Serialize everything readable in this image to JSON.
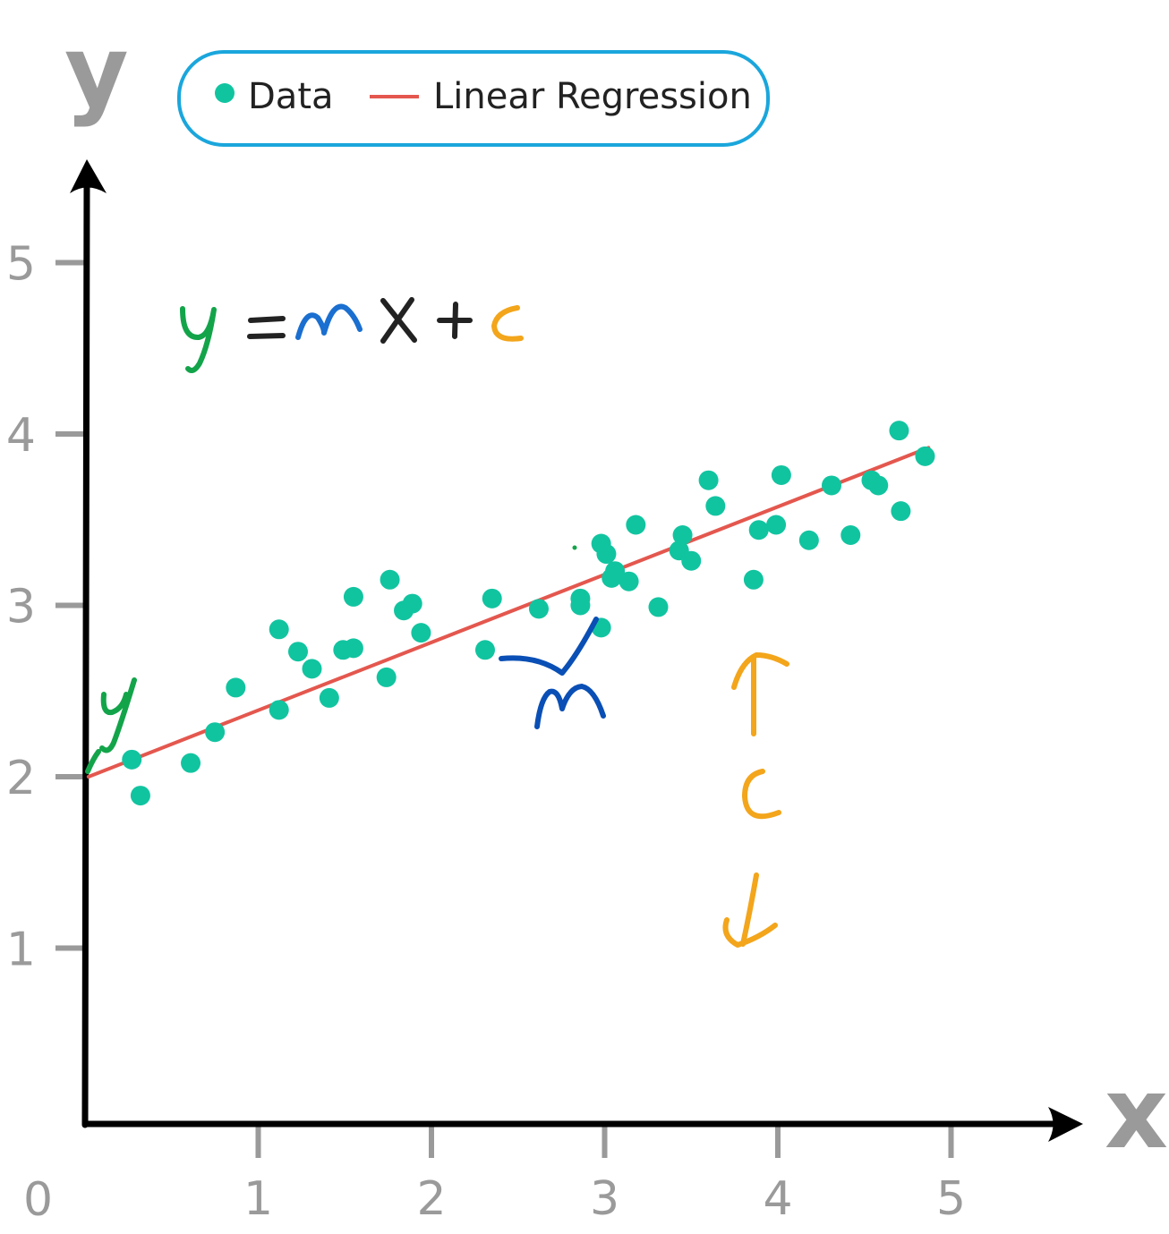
{
  "colors": {
    "point": "#11c4a0",
    "line": "#e4574e",
    "axis": "#000000",
    "tick": "#9a9a9a",
    "legend_border": "#1aa6dc",
    "hand_green": "#13a44a",
    "hand_blue": "#1a6fd0",
    "hand_dark": "#222222",
    "hand_orange": "#f3a51b",
    "hand_navy": "#0a4fb5"
  },
  "chart_data": {
    "type": "scatter",
    "xlabel": "x",
    "ylabel": "y",
    "origin_label": "0",
    "xlim": [
      0,
      5.7
    ],
    "ylim": [
      0,
      5.5
    ],
    "xticks": [
      1,
      2,
      3,
      4,
      5
    ],
    "yticks": [
      1,
      2,
      3,
      4,
      5
    ],
    "grid": false,
    "legend": {
      "position": "top",
      "entries": [
        "Data",
        "Linear Regression"
      ]
    },
    "annotations": [
      "y",
      "=",
      "m",
      "x",
      "+",
      "c",
      "y",
      "m",
      "c"
    ],
    "series": [
      {
        "name": "Data",
        "type": "scatter",
        "points": [
          [
            0.27,
            2.1
          ],
          [
            0.32,
            1.89
          ],
          [
            0.61,
            2.08
          ],
          [
            0.75,
            2.26
          ],
          [
            0.87,
            2.52
          ],
          [
            1.12,
            2.39
          ],
          [
            1.12,
            2.86
          ],
          [
            1.23,
            2.73
          ],
          [
            1.31,
            2.63
          ],
          [
            1.41,
            2.46
          ],
          [
            1.49,
            2.74
          ],
          [
            1.55,
            2.75
          ],
          [
            1.55,
            3.05
          ],
          [
            1.74,
            2.58
          ],
          [
            1.76,
            3.15
          ],
          [
            1.84,
            2.97
          ],
          [
            1.89,
            3.01
          ],
          [
            1.94,
            2.84
          ],
          [
            2.31,
            2.74
          ],
          [
            2.35,
            3.04
          ],
          [
            2.62,
            2.98
          ],
          [
            2.86,
            3.0
          ],
          [
            2.86,
            3.04
          ],
          [
            2.98,
            2.87
          ],
          [
            2.98,
            3.36
          ],
          [
            3.01,
            3.3
          ],
          [
            3.04,
            3.16
          ],
          [
            3.06,
            3.2
          ],
          [
            3.14,
            3.14
          ],
          [
            3.18,
            3.47
          ],
          [
            3.31,
            2.99
          ],
          [
            3.43,
            3.32
          ],
          [
            3.45,
            3.41
          ],
          [
            3.5,
            3.26
          ],
          [
            3.6,
            3.73
          ],
          [
            3.64,
            3.58
          ],
          [
            3.86,
            3.15
          ],
          [
            3.89,
            3.44
          ],
          [
            3.99,
            3.47
          ],
          [
            4.02,
            3.76
          ],
          [
            4.18,
            3.38
          ],
          [
            4.31,
            3.7
          ],
          [
            4.42,
            3.41
          ],
          [
            4.54,
            3.73
          ],
          [
            4.58,
            3.7
          ],
          [
            4.7,
            4.02
          ],
          [
            4.71,
            3.55
          ],
          [
            4.85,
            3.87
          ]
        ]
      },
      {
        "name": "Linear Regression",
        "type": "line",
        "x": [
          0.02,
          4.87
        ],
        "y": [
          2.0,
          3.92
        ]
      }
    ]
  }
}
